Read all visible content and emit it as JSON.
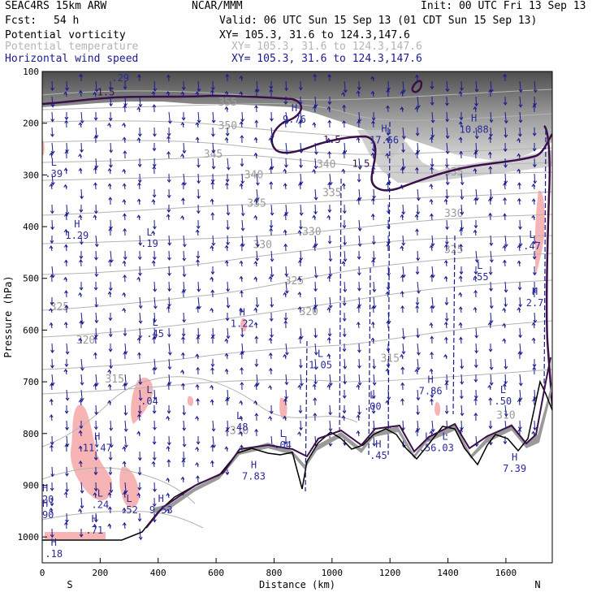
{
  "header": {
    "model": "SEAC4RS 15km ARW",
    "org": "NCAR/MMM",
    "init": "Init: 00 UTC Fri 13 Sep 13",
    "fcst_label": "Fcst:",
    "fcst_value": "54 h",
    "valid": "Valid: 06 UTC Sun 15 Sep 13 (01 CDT Sun 15 Sep 13)"
  },
  "legend": [
    {
      "field": "Potential vorticity",
      "xy": "XY= 105.3, 31.6 to 124.3,147.6",
      "color": "#000000"
    },
    {
      "field": "Potential temperature",
      "xy": "XY= 105.3, 31.6 to 124.3,147.6",
      "color": "#b4b4b4"
    },
    {
      "field": "Horizontal wind speed",
      "xy": "XY= 105.3, 31.6 to 124.3,147.6",
      "color": "#1a1a8c"
    }
  ],
  "colors": {
    "pv_contour": "#3b0f4a",
    "theta_contour": "#b4b4b4",
    "wind_vector": "#1a1a8c",
    "pv_negative_fill": "#f7b4b4",
    "terrain": "#000000"
  },
  "chart_data": {
    "type": "cross-section",
    "xlabel": "Distance (km)",
    "ylabel": "Pressure (hPa)",
    "xlim": [
      0,
      1760
    ],
    "ylim": [
      1050,
      100
    ],
    "x_ticks": [
      0,
      200,
      400,
      600,
      800,
      1000,
      1200,
      1400,
      1600
    ],
    "y_ticks": [
      100,
      200,
      300,
      400,
      500,
      600,
      700,
      800,
      900,
      1000
    ],
    "left_end_label": "S",
    "right_end_label": "N",
    "theta_labels": [
      {
        "text": "355",
        "x": 640,
        "p": 160
      },
      {
        "text": "350",
        "x": 640,
        "p": 205
      },
      {
        "text": "345",
        "x": 590,
        "p": 260
      },
      {
        "text": "340",
        "x": 730,
        "p": 300
      },
      {
        "text": "340",
        "x": 980,
        "p": 280
      },
      {
        "text": "335",
        "x": 740,
        "p": 355
      },
      {
        "text": "335",
        "x": 1000,
        "p": 335
      },
      {
        "text": "335",
        "x": 1420,
        "p": 295
      },
      {
        "text": "330",
        "x": 760,
        "p": 435
      },
      {
        "text": "330",
        "x": 930,
        "p": 410
      },
      {
        "text": "330",
        "x": 1420,
        "p": 375
      },
      {
        "text": "325",
        "x": 870,
        "p": 505
      },
      {
        "text": "325",
        "x": 1420,
        "p": 445
      },
      {
        "text": "325",
        "x": 60,
        "p": 555
      },
      {
        "text": "320",
        "x": 920,
        "p": 565
      },
      {
        "text": "320",
        "x": 150,
        "p": 620
      },
      {
        "text": "315",
        "x": 1200,
        "p": 655
      },
      {
        "text": "315",
        "x": 250,
        "p": 695
      },
      {
        "text": "310",
        "x": 1600,
        "p": 765
      },
      {
        "text": "310",
        "x": 680,
        "p": 795
      }
    ],
    "pv_labels": [
      {
        "text": "1.5",
        "x": 220,
        "p": 140
      },
      {
        "text": "1.5",
        "x": 1000,
        "p": 232
      },
      {
        "text": "1.5",
        "x": 1100,
        "p": 278
      }
    ],
    "extrema": [
      {
        "kind": "H",
        "value": ".29",
        "x": 270,
        "p": 100
      },
      {
        "kind": "H",
        "value": "9.76",
        "x": 870,
        "p": 180
      },
      {
        "kind": "H",
        "value": "17.66",
        "x": 1180,
        "p": 220
      },
      {
        "kind": "H",
        "value": "10.88",
        "x": 1490,
        "p": 200
      },
      {
        "kind": "L",
        "value": ".39",
        "x": 40,
        "p": 285
      },
      {
        "kind": "H",
        "value": "1.29",
        "x": 120,
        "p": 405
      },
      {
        "kind": "L",
        "value": ".19",
        "x": 370,
        "p": 420
      },
      {
        "kind": "L",
        "value": ".47",
        "x": 1690,
        "p": 425
      },
      {
        "kind": "L",
        "value": ".55",
        "x": 1510,
        "p": 485
      },
      {
        "kind": "H",
        "value": "2.7",
        "x": 1700,
        "p": 535
      },
      {
        "kind": "H",
        "value": "1.22",
        "x": 690,
        "p": 575
      },
      {
        "kind": "L",
        "value": ".45",
        "x": 390,
        "p": 595
      },
      {
        "kind": "L",
        "value": "1.05",
        "x": 960,
        "p": 655
      },
      {
        "kind": "H",
        "value": "7.86",
        "x": 1340,
        "p": 705
      },
      {
        "kind": "L",
        "value": ".04",
        "x": 370,
        "p": 725
      },
      {
        "kind": "L",
        "value": ".00",
        "x": 1140,
        "p": 735
      },
      {
        "kind": "L",
        "value": ".50",
        "x": 1590,
        "p": 725
      },
      {
        "kind": "L",
        "value": ".48",
        "x": 680,
        "p": 775
      },
      {
        "kind": "L",
        "value": ".04",
        "x": 830,
        "p": 810
      },
      {
        "kind": "L",
        "value": ".56",
        "x": 1330,
        "p": 815
      },
      {
        "kind": "L",
        "value": ".03",
        "x": 1390,
        "p": 815
      },
      {
        "kind": "H",
        "value": "11.47",
        "x": 190,
        "p": 815
      },
      {
        "kind": "H",
        "value": ".45",
        "x": 1160,
        "p": 830
      },
      {
        "kind": "H",
        "value": "7.39",
        "x": 1630,
        "p": 855
      },
      {
        "kind": "H",
        "value": "7.83",
        "x": 730,
        "p": 870
      },
      {
        "kind": "H",
        "value": ".20",
        "x": 10,
        "p": 915
      },
      {
        "kind": "H",
        "value": ".90",
        "x": 10,
        "p": 945
      },
      {
        "kind": "L",
        "value": ".24",
        "x": 200,
        "p": 925
      },
      {
        "kind": "L",
        "value": ".52",
        "x": 300,
        "p": 935
      },
      {
        "kind": "H",
        "value": "9.53",
        "x": 410,
        "p": 935
      },
      {
        "kind": "H",
        "value": ".71",
        "x": 180,
        "p": 975
      },
      {
        "kind": "H",
        "value": ".18",
        "x": 40,
        "p": 1020
      }
    ]
  }
}
